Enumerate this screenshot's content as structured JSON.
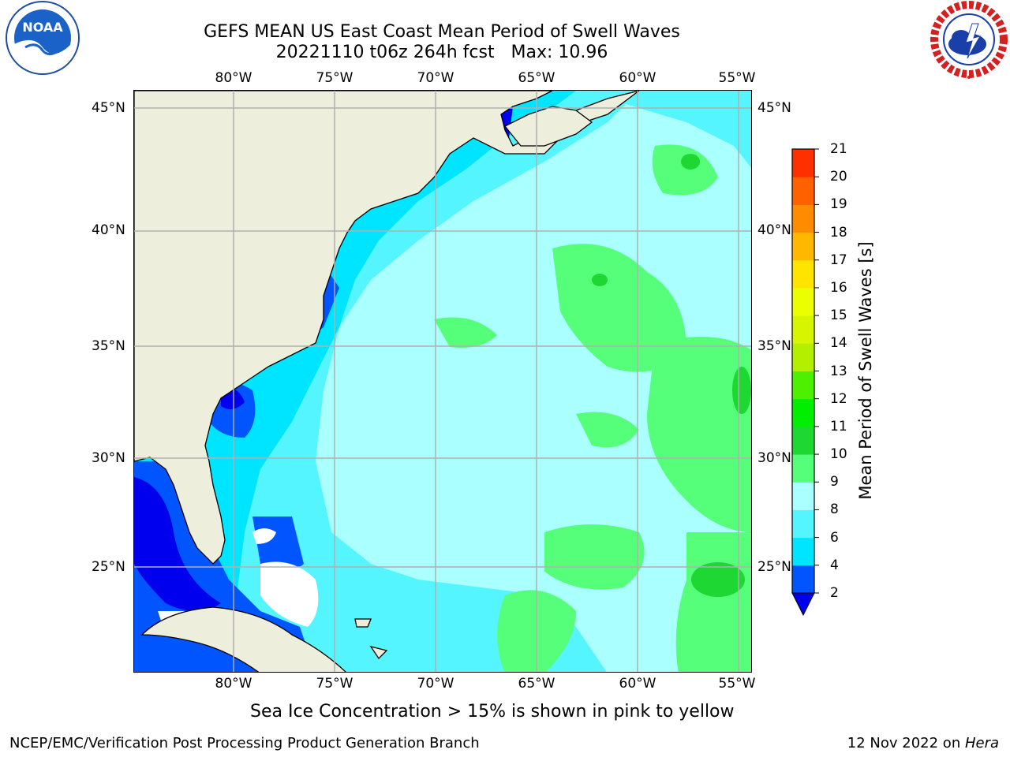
{
  "title": {
    "line1": "GEFS MEAN US East Coast Mean Period of Swell Waves",
    "line2": "20221110 t06z 264h fcst   Max: 10.96"
  },
  "logos": {
    "left": "noaa-logo",
    "left_text": "NOAA",
    "right": "nws-logo"
  },
  "map": {
    "lon_ticks": [
      "80°W",
      "75°W",
      "70°W",
      "65°W",
      "60°W",
      "55°W"
    ],
    "lat_ticks": [
      "45°N",
      "40°N",
      "35°N",
      "30°N",
      "25°N"
    ],
    "colors": {
      "land": "#eeeedd",
      "coast": "#000000",
      "grid": "#b0b0b0",
      "ice_free_white": "#ffffff"
    },
    "field_description_bands_s": [
      "2-4",
      "4-6",
      "6-8",
      "8-9",
      "9-10",
      "10-11"
    ]
  },
  "colorbar": {
    "title": "Mean Period of Swell Waves [s]",
    "levels": [
      "2",
      "4",
      "6",
      "8",
      "9",
      "10",
      "11",
      "12",
      "13",
      "14",
      "15",
      "16",
      "17",
      "18",
      "19",
      "20",
      "21"
    ],
    "colors": [
      "#0055ff",
      "#00e5ff",
      "#55f5ff",
      "#aaffff",
      "#55ff7a",
      "#1ed732",
      "#00ef00",
      "#4cf000",
      "#b5ef00",
      "#d7f500",
      "#ecff00",
      "#ffe400",
      "#ffb700",
      "#ff8c00",
      "#ff6000",
      "#ff3000",
      "#ff0000"
    ],
    "under_color": "#0000ee"
  },
  "notes": {
    "ice": "Sea Ice Concentration > 15% is shown in pink to yellow",
    "footer_left": "NCEP/EMC/Verification Post Processing Product Generation Branch",
    "footer_date": "12 Nov 2022 on ",
    "footer_host": "Hera"
  }
}
